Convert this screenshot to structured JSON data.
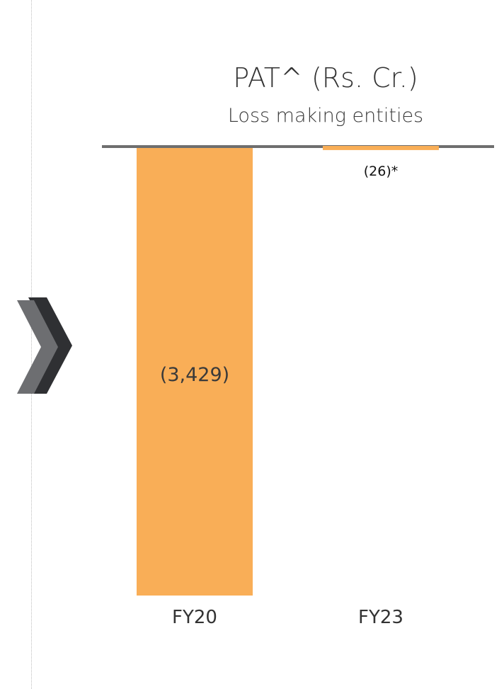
{
  "chart_data": {
    "type": "bar",
    "title": "PAT^ (Rs. Cr.)",
    "subtitle": "Loss making entities",
    "categories": [
      "FY20",
      "FY23"
    ],
    "values": [
      -3429,
      -26
    ],
    "data_labels": [
      "(3,429)",
      "(26)*"
    ],
    "ylim": [
      -3429,
      0
    ],
    "grid": false,
    "legend": "none",
    "bar_color": "#F9AE57",
    "axis_color": "#6E6E6E"
  },
  "colors": {
    "chevron_front": "#2F3033",
    "chevron_back": "#6D6E71",
    "divider": "#BDBDBD"
  }
}
